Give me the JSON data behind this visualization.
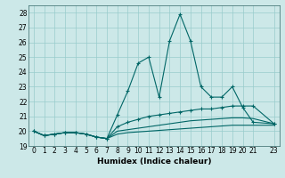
{
  "title": "",
  "xlabel": "Humidex (Indice chaleur)",
  "bg_color": "#cce8e8",
  "grid_color": "#99cccc",
  "line_color": "#006666",
  "xlim": [
    -0.5,
    23.5
  ],
  "ylim": [
    19,
    28.5
  ],
  "yticks": [
    19,
    20,
    21,
    22,
    23,
    24,
    25,
    26,
    27,
    28
  ],
  "xticks": [
    0,
    1,
    2,
    3,
    4,
    5,
    6,
    7,
    8,
    9,
    10,
    11,
    12,
    13,
    14,
    15,
    16,
    17,
    18,
    19,
    20,
    21,
    23
  ],
  "series1_x": [
    0,
    1,
    2,
    3,
    4,
    5,
    6,
    7,
    8,
    9,
    10,
    11,
    12,
    13,
    14,
    15,
    16,
    17,
    18,
    19,
    20,
    21,
    23
  ],
  "series1_y": [
    20.0,
    19.7,
    19.8,
    19.9,
    19.9,
    19.8,
    19.6,
    19.5,
    21.1,
    22.7,
    24.6,
    25.0,
    22.3,
    26.1,
    27.9,
    26.1,
    23.0,
    22.3,
    22.3,
    23.0,
    21.6,
    20.6,
    20.5
  ],
  "series2_x": [
    0,
    1,
    2,
    3,
    4,
    5,
    6,
    7,
    8,
    9,
    10,
    11,
    12,
    13,
    14,
    15,
    16,
    17,
    18,
    19,
    20,
    21,
    23
  ],
  "series2_y": [
    20.0,
    19.7,
    19.8,
    19.9,
    19.9,
    19.8,
    19.6,
    19.5,
    20.3,
    20.6,
    20.8,
    21.0,
    21.1,
    21.2,
    21.3,
    21.4,
    21.5,
    21.5,
    21.6,
    21.7,
    21.7,
    21.7,
    20.5
  ],
  "series3_x": [
    0,
    1,
    2,
    3,
    4,
    5,
    6,
    7,
    8,
    9,
    10,
    11,
    12,
    13,
    14,
    15,
    16,
    17,
    18,
    19,
    20,
    21,
    23
  ],
  "series3_y": [
    20.0,
    19.7,
    19.8,
    19.9,
    19.9,
    19.8,
    19.6,
    19.5,
    20.0,
    20.1,
    20.2,
    20.3,
    20.4,
    20.5,
    20.6,
    20.7,
    20.75,
    20.8,
    20.85,
    20.9,
    20.9,
    20.85,
    20.5
  ],
  "series4_x": [
    0,
    1,
    2,
    3,
    4,
    5,
    6,
    7,
    8,
    9,
    10,
    11,
    12,
    13,
    14,
    15,
    16,
    17,
    18,
    19,
    20,
    21,
    23
  ],
  "series4_y": [
    20.0,
    19.7,
    19.8,
    19.9,
    19.9,
    19.8,
    19.6,
    19.5,
    19.8,
    19.9,
    19.95,
    20.0,
    20.05,
    20.1,
    20.15,
    20.2,
    20.25,
    20.3,
    20.35,
    20.4,
    20.4,
    20.4,
    20.4
  ]
}
